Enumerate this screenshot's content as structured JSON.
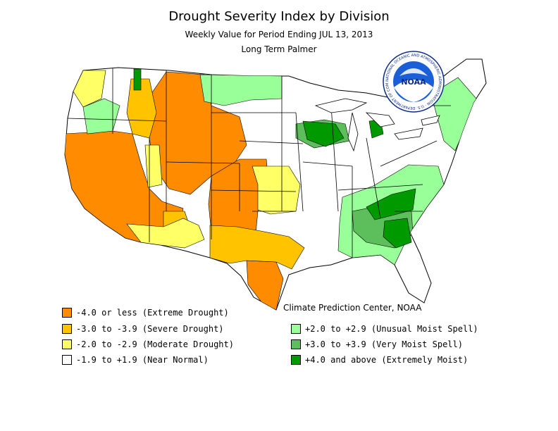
{
  "title": "Drought Severity Index by Division",
  "subtitle": "Weekly Value for Period Ending JUL 13, 2013",
  "subtitle2": "Long Term Palmer",
  "credit": "Climate Prediction Center, NOAA",
  "logo": {
    "center_text": "NOAA",
    "ring_text": "NATIONAL OCEANIC AND ATMOSPHERIC ADMINISTRATION · U.S. DEPARTMENT OF COMMERCE ·"
  },
  "colors": {
    "extreme_drought": "#ff8c00",
    "severe_drought": "#ffc300",
    "moderate_drought": "#ffff66",
    "near_normal": "#ffffff",
    "unusual_moist": "#99ff99",
    "very_moist": "#5cbf5c",
    "extremely_moist": "#009900"
  },
  "legend": [
    {
      "label": "-4.0 or less (Extreme Drought)",
      "color": "#ff8c00"
    },
    {
      "label": "-3.0 to -3.9 (Severe Drought)",
      "color": "#ffc300"
    },
    {
      "label": "-2.0 to -2.9 (Moderate Drought)",
      "color": "#ffff66"
    },
    {
      "label": "-1.9 to +1.9 (Near Normal)",
      "color": "#ffffff"
    },
    {
      "label": "+2.0 to +2.9 (Unusual Moist Spell)",
      "color": "#99ff99"
    },
    {
      "label": "+3.0 to +3.9 (Very Moist Spell)",
      "color": "#5cbf5c"
    },
    {
      "label": "+4.0 and above (Extremely Moist)",
      "color": "#009900"
    }
  ]
}
